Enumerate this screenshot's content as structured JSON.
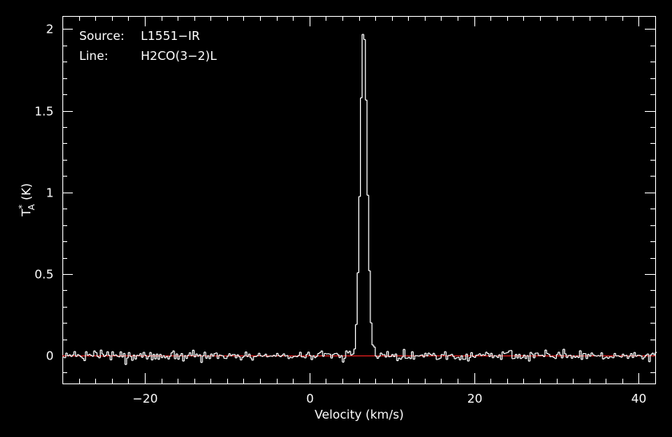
{
  "chart_data": {
    "type": "line",
    "plot_style": "histogram-step",
    "xlabel": "Velocity (km/s)",
    "ylabel": {
      "base": "T",
      "superscript": "*",
      "subscript": "A",
      "unit": " (K)"
    },
    "xlim": [
      -30,
      42
    ],
    "ylim": [
      -0.17,
      2.08
    ],
    "x_ticks": [
      -20,
      0,
      20,
      40
    ],
    "x_tick_labels": [
      "−20",
      "0",
      "20",
      "40"
    ],
    "y_ticks": [
      0,
      0.5,
      1,
      1.5,
      2
    ],
    "y_tick_labels": [
      "0",
      "0.5",
      "1",
      "1.5",
      "2"
    ],
    "annotations": [
      {
        "label": "Source:",
        "value": "L1551−IR"
      },
      {
        "label": "Line:",
        "value": "H2CO(3−2)L"
      }
    ],
    "baseline": {
      "y": 0,
      "color": "#ff2222"
    },
    "colors": {
      "background": "#000000",
      "axes": "#ffffff",
      "spectrum": "#ffffff",
      "baseline": "#ff2222"
    },
    "series": [
      {
        "channel_width": 0.2,
        "start_velocity": -30,
        "noise_rms": 0.015,
        "peak": {
          "velocity": 6.6,
          "intensity": 2.02,
          "sigma": 0.42
        }
      }
    ]
  }
}
